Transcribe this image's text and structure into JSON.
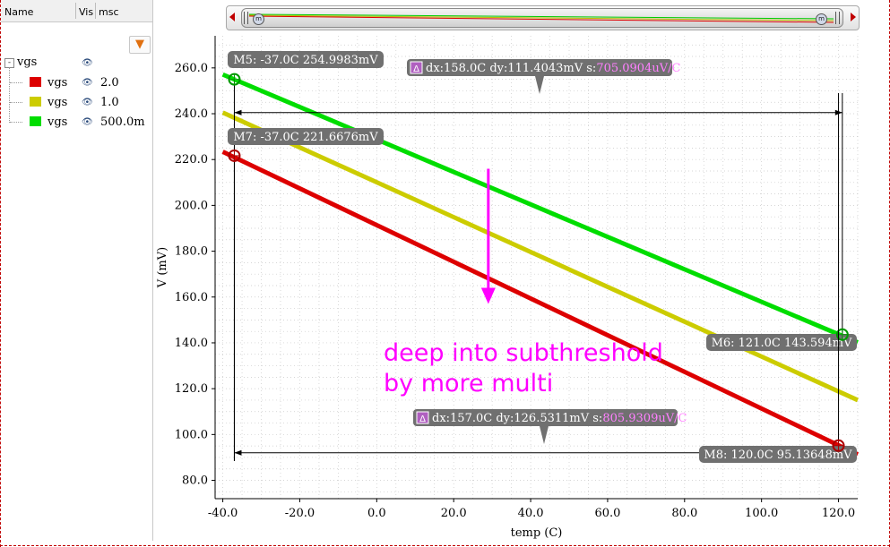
{
  "panel": {
    "header": {
      "name": "Name",
      "vis": "Vis",
      "msc": "msc"
    },
    "root": {
      "label": "vgs",
      "toggle": "-"
    },
    "rows": [
      {
        "name": "vgs",
        "msc": "2.0",
        "color": "#dd0000"
      },
      {
        "name": "vgs",
        "msc": "1.0",
        "color": "#cccc00"
      },
      {
        "name": "vgs",
        "msc": "500.0m",
        "color": "#00dd00"
      }
    ]
  },
  "chart_data": {
    "type": "line",
    "xlabel": "temp (C)",
    "ylabel": "V (mV)",
    "xlim": [
      -42,
      125
    ],
    "ylim": [
      72,
      274
    ],
    "xticks": [
      -40,
      -20,
      0,
      20,
      40,
      60,
      80,
      100,
      120
    ],
    "xtick_labels": [
      "-40.0",
      "-20.0",
      "0.0",
      "20.0",
      "40.0",
      "60.0",
      "80.0",
      "100.0",
      "120.0"
    ],
    "yticks": [
      80,
      100,
      120,
      140,
      160,
      180,
      200,
      220,
      240,
      260
    ],
    "ytick_labels": [
      "80.0",
      "100.0",
      "120.0",
      "140.0",
      "160.0",
      "180.0",
      "200.0",
      "220.0",
      "240.0",
      "260.0"
    ],
    "grid": true,
    "series": [
      {
        "name": "2.0",
        "color": "#dd0000",
        "x": [
          -40,
          125
        ],
        "y": [
          223.4,
          91.3
        ]
      },
      {
        "name": "1.0",
        "color": "#cccc00",
        "x": [
          -40,
          125
        ],
        "y": [
          240.5,
          115.0
        ]
      },
      {
        "name": "500.0m",
        "color": "#00dd00",
        "x": [
          -40,
          125
        ],
        "y": [
          257.1,
          140.2
        ]
      }
    ],
    "markers": [
      {
        "label": "M5: -37.0C 254.9983mV",
        "x": -37.0,
        "y": 254.9983,
        "color": "#00dd00"
      },
      {
        "label": "M6: 121.0C 143.594mV",
        "x": 121.0,
        "y": 143.594,
        "color": "#00dd00"
      },
      {
        "label": "M7: -37.0C 221.6676mV",
        "x": -37.0,
        "y": 221.6676,
        "color": "#dd0000"
      },
      {
        "label": "M8: 120.0C 95.13648mV",
        "x": 120.0,
        "y": 95.13648,
        "color": "#dd0000"
      }
    ],
    "deltas": [
      {
        "symbol": "Δ",
        "text": "dx:158.0C dy:111.4043mV s:",
        "slope": "705.0904uV/C",
        "x1": -37.0,
        "x2": 121.0,
        "y": 240.5
      },
      {
        "symbol": "Δ",
        "text": "dx:157.0C dy:126.5311mV s:",
        "slope": "805.9309uV/C",
        "x1": -37.0,
        "x2": 120.0,
        "y": 92.0
      }
    ],
    "annotation": {
      "lines": [
        "deep into subthreshold",
        "by more multi"
      ],
      "color": "#ff00ff",
      "arrow": {
        "x": 29,
        "y_from": 216,
        "y_to": 157
      }
    }
  }
}
